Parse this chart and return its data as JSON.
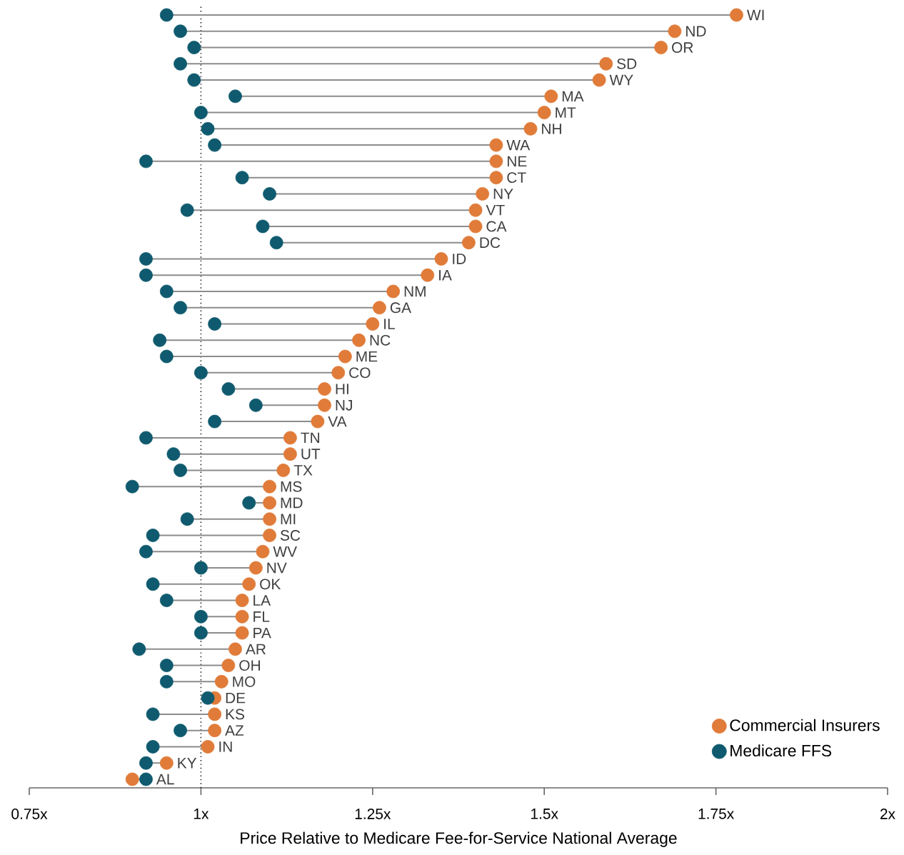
{
  "chart_data": {
    "type": "scatter",
    "orientation": "horizontal",
    "xlabel": "Price Relative to Medicare Fee-for-Service National Average",
    "categories": [
      "WI",
      "ND",
      "OR",
      "SD",
      "WY",
      "MA",
      "MT",
      "NH",
      "WA",
      "NE",
      "CT",
      "NY",
      "VT",
      "CA",
      "DC",
      "ID",
      "IA",
      "NM",
      "GA",
      "IL",
      "NC",
      "ME",
      "CO",
      "HI",
      "NJ",
      "VA",
      "TN",
      "UT",
      "TX",
      "MS",
      "MD",
      "MI",
      "SC",
      "WV",
      "NV",
      "OK",
      "LA",
      "FL",
      "PA",
      "AR",
      "OH",
      "MO",
      "DE",
      "KS",
      "AZ",
      "IN",
      "KY",
      "AL"
    ],
    "series": [
      {
        "name": "Commercial Insurers",
        "color": "#e07b39",
        "values": [
          1.78,
          1.69,
          1.67,
          1.59,
          1.58,
          1.51,
          1.5,
          1.48,
          1.43,
          1.43,
          1.43,
          1.41,
          1.4,
          1.4,
          1.39,
          1.35,
          1.33,
          1.28,
          1.26,
          1.25,
          1.23,
          1.21,
          1.2,
          1.18,
          1.18,
          1.17,
          1.13,
          1.13,
          1.12,
          1.1,
          1.1,
          1.1,
          1.1,
          1.09,
          1.08,
          1.07,
          1.06,
          1.06,
          1.06,
          1.05,
          1.04,
          1.03,
          1.02,
          1.02,
          1.02,
          1.01,
          0.95,
          0.9
        ]
      },
      {
        "name": "Medicare FFS",
        "color": "#0f5a6e",
        "values": [
          0.95,
          0.97,
          0.99,
          0.97,
          0.99,
          1.05,
          1.0,
          1.01,
          1.02,
          0.92,
          1.06,
          1.1,
          0.98,
          1.09,
          1.11,
          0.92,
          0.92,
          0.95,
          0.97,
          1.02,
          0.94,
          0.95,
          1.0,
          1.04,
          1.08,
          1.02,
          0.92,
          0.96,
          0.97,
          0.9,
          1.07,
          0.98,
          0.93,
          0.92,
          1.0,
          0.93,
          0.95,
          1.0,
          1.0,
          0.91,
          0.95,
          0.95,
          1.01,
          0.93,
          0.97,
          0.93,
          0.92,
          0.92
        ]
      }
    ],
    "xlim": [
      0.75,
      2
    ],
    "xticks": [
      {
        "value": 0.75,
        "label": "0.75x"
      },
      {
        "value": 1,
        "label": "1x"
      },
      {
        "value": 1.25,
        "label": "1.25x"
      },
      {
        "value": 1.5,
        "label": "1.5x"
      },
      {
        "value": 1.75,
        "label": "1.75x"
      },
      {
        "value": 2,
        "label": "2x"
      }
    ],
    "ref_lines": [
      {
        "axis": "x",
        "value": 1,
        "line_style": "dotted"
      }
    ],
    "marker": "circle",
    "legend": "bottom right",
    "grid": false,
    "tick_labels": "x",
    "data_labels": false
  }
}
